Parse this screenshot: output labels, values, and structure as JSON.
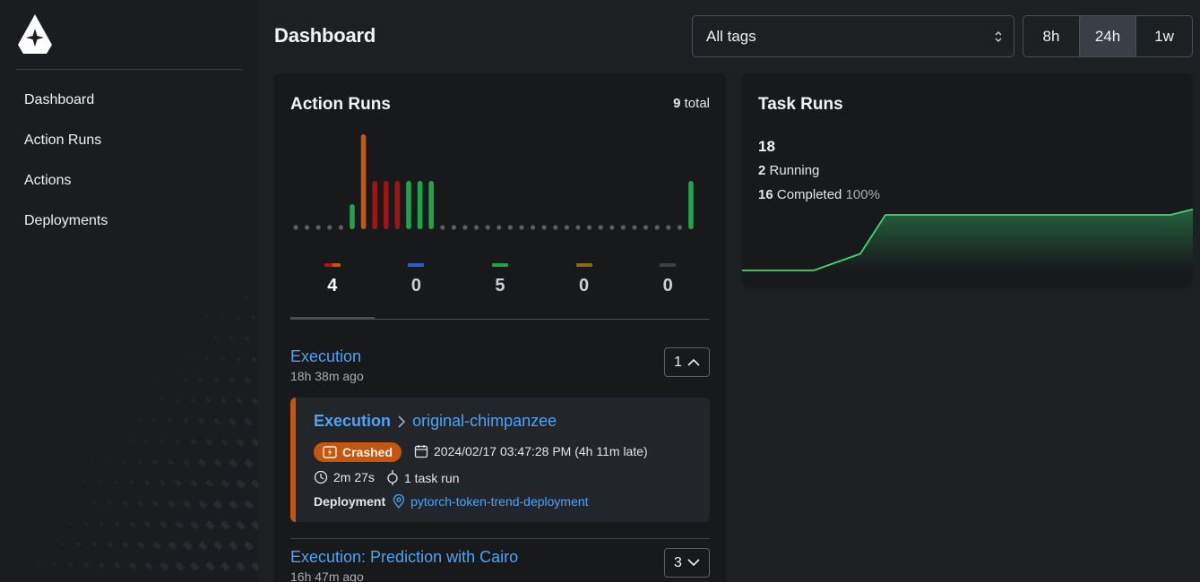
{
  "sidebar": {
    "items": [
      {
        "label": "Dashboard",
        "active": true
      },
      {
        "label": "Action Runs",
        "active": false
      },
      {
        "label": "Actions",
        "active": false
      },
      {
        "label": "Deployments",
        "active": false
      }
    ]
  },
  "header": {
    "title": "Dashboard",
    "tag_filter": "All tags",
    "ranges": [
      {
        "label": "8h",
        "active": false
      },
      {
        "label": "24h",
        "active": true
      },
      {
        "label": "1w",
        "active": false
      }
    ]
  },
  "action_runs": {
    "title": "Action Runs",
    "total_count": "9",
    "total_suffix": "total",
    "histogram_values": [
      0,
      0,
      0,
      0,
      0,
      1,
      4,
      2,
      2,
      2,
      2,
      2,
      2,
      0,
      0,
      0,
      0,
      0,
      0,
      0,
      0,
      0,
      0,
      0,
      0,
      0,
      0,
      0,
      0,
      0,
      0,
      0,
      0,
      0,
      0,
      2
    ],
    "histogram_colors": [
      "#5a5f65",
      "#5a5f65",
      "#5a5f65",
      "#5a5f65",
      "#5a5f65",
      "#22a34a",
      "#c4560f",
      "#a11414",
      "#a11414",
      "#a11414",
      "#22a34a",
      "#22a34a",
      "#22a34a",
      "#5a5f65",
      "#5a5f65",
      "#5a5f65",
      "#5a5f65",
      "#5a5f65",
      "#5a5f65",
      "#5a5f65",
      "#5a5f65",
      "#5a5f65",
      "#5a5f65",
      "#5a5f65",
      "#5a5f65",
      "#5a5f65",
      "#5a5f65",
      "#5a5f65",
      "#5a5f65",
      "#5a5f65",
      "#5a5f65",
      "#5a5f65",
      "#5a5f65",
      "#5a5f65",
      "#5a5f65",
      "#22a34a"
    ],
    "state_tabs": [
      {
        "count": "4",
        "colors": [
          "#b01515",
          "#c4560f"
        ],
        "active": true
      },
      {
        "count": "0",
        "colors": [
          "#2f5bd0"
        ],
        "active": false
      },
      {
        "count": "5",
        "colors": [
          "#22a34a"
        ],
        "active": false
      },
      {
        "count": "0",
        "colors": [
          "#8a6a14"
        ],
        "active": false
      },
      {
        "count": "0",
        "colors": [
          "#3d4146"
        ],
        "active": false
      }
    ],
    "groups": [
      {
        "title": "Execution",
        "ago": "18h 38m ago",
        "count": "1",
        "runs": [
          {
            "flow": "Execution",
            "name": "original-chimpanzee",
            "state": "Crashed",
            "scheduled": "2024/02/17 03:47:28 PM (4h 11m late)",
            "duration": "2m 27s",
            "task_runs": "1 task run",
            "deployment_label": "Deployment",
            "deployment": "pytorch-token-trend-deployment"
          }
        ]
      },
      {
        "title": "Execution: Prediction with Cairo",
        "ago": "16h 47m ago",
        "count": "3"
      }
    ]
  },
  "task_runs": {
    "title": "Task Runs",
    "total": "18",
    "running_count": "2",
    "running_label": "Running",
    "completed_count": "16",
    "completed_label": "Completed",
    "completed_pct": "100%",
    "chart_values": [
      0,
      0,
      0,
      0.3,
      1,
      1,
      1,
      1,
      1,
      1,
      1,
      1.1
    ]
  }
}
